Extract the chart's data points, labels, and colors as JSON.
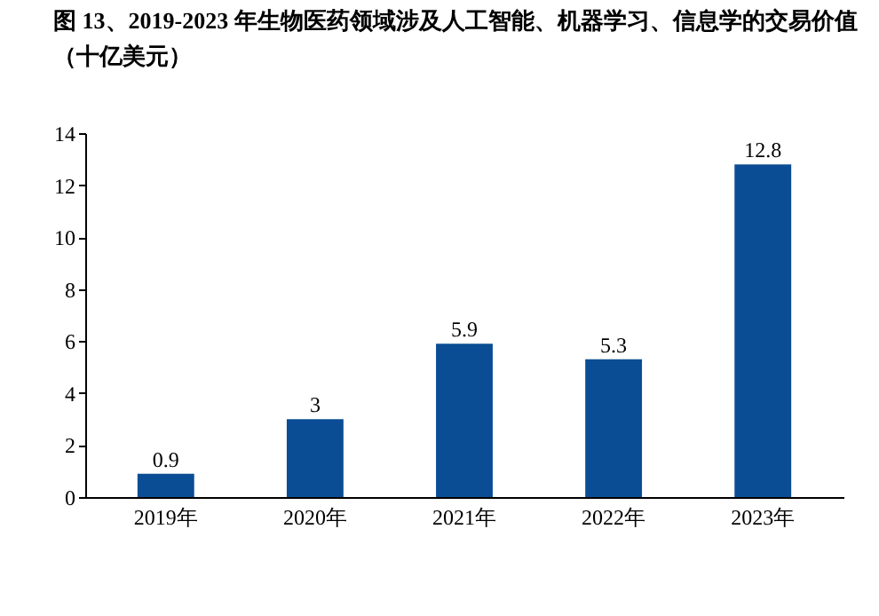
{
  "chart_data": {
    "type": "bar",
    "title": "图 13、2019-2023 年生物医药领域涉及人工智能、机器学习、信息学的交易价值（十亿美元）",
    "categories": [
      "2019年",
      "2020年",
      "2021年",
      "2022年",
      "2023年"
    ],
    "values": [
      0.9,
      3,
      5.9,
      5.3,
      12.8
    ],
    "color": "#0b4d94",
    "ylim": [
      0,
      14
    ],
    "yticks": [
      0,
      2,
      4,
      6,
      8,
      10,
      12,
      14
    ],
    "data_labels": true,
    "grid": false
  }
}
